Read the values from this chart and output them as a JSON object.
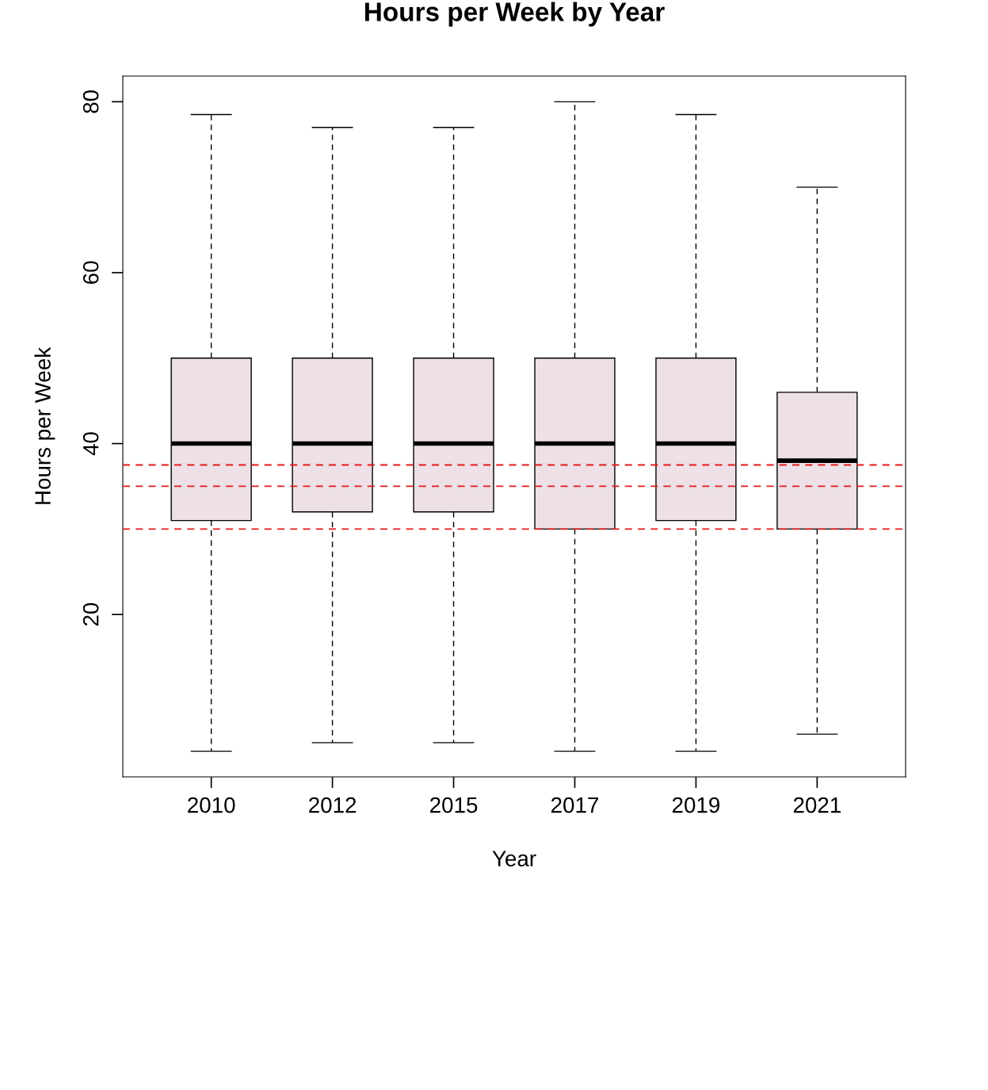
{
  "chart_data": {
    "type": "box",
    "title": "Hours per Week by Year",
    "xlabel": "Year",
    "ylabel": "Hours per Week",
    "categories": [
      "2010",
      "2012",
      "2015",
      "2017",
      "2019",
      "2021"
    ],
    "series": [
      {
        "color": "#ede0e6",
        "boxes": [
          {
            "low": 4,
            "q1": 31,
            "median": 40,
            "q3": 50,
            "high": 78.5
          },
          {
            "low": 5,
            "q1": 32,
            "median": 40,
            "q3": 50,
            "high": 77
          },
          {
            "low": 5,
            "q1": 32,
            "median": 40,
            "q3": 50,
            "high": 77
          },
          {
            "low": 4,
            "q1": 30,
            "median": 40,
            "q3": 50,
            "high": 80
          },
          {
            "low": 4,
            "q1": 31,
            "median": 40,
            "q3": 50,
            "high": 78.5
          },
          {
            "low": 6,
            "q1": 30,
            "median": 38,
            "q3": 46,
            "high": 70
          }
        ]
      }
    ],
    "ylim": [
      1,
      83
    ],
    "yticks": [
      20,
      40,
      60,
      80
    ],
    "ref_lines": [
      {
        "axis": "y",
        "value": 37.5,
        "color": "#e31a1c",
        "line_style": "dashed"
      },
      {
        "axis": "y",
        "value": 35,
        "color": "#e31a1c",
        "line_style": "dashed"
      },
      {
        "axis": "y",
        "value": 30,
        "color": "#e31a1c",
        "line_style": "dashed"
      }
    ],
    "grid": false,
    "legend": false
  }
}
